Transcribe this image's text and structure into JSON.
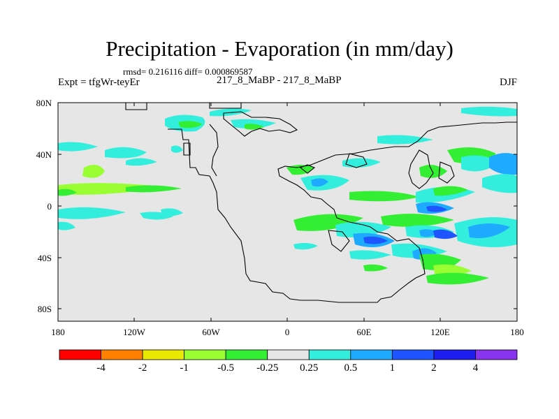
{
  "title": "Precipitation - Evaporation (in mm/day)",
  "stats": "rmsd= 0.216116 diff= 0.000869587",
  "experiment": "Expt = tfgWr-teyEr",
  "cases": "217_8_MaBP - 217_8_MaBP",
  "season": "DJF",
  "lat_labels": [
    "80N",
    "40N",
    "0",
    "40S",
    "80S"
  ],
  "lon_labels": [
    "180",
    "120W",
    "60W",
    "0",
    "60E",
    "120E",
    "180"
  ],
  "colorbar": {
    "colors": [
      "#ff0000",
      "#ff8000",
      "#e8e800",
      "#99ff33",
      "#33ee33",
      "#e6e6e6",
      "#33eedd",
      "#1eaaff",
      "#1e55ff",
      "#1e1eee",
      "#8833ee"
    ],
    "labels": [
      "-4",
      "-2",
      "-1",
      "-0.5",
      "-0.25",
      "0.25",
      "0.5",
      "1",
      "2",
      "4"
    ]
  },
  "colors": {
    "background": "#e6e6e6",
    "coastline": "#000000"
  }
}
